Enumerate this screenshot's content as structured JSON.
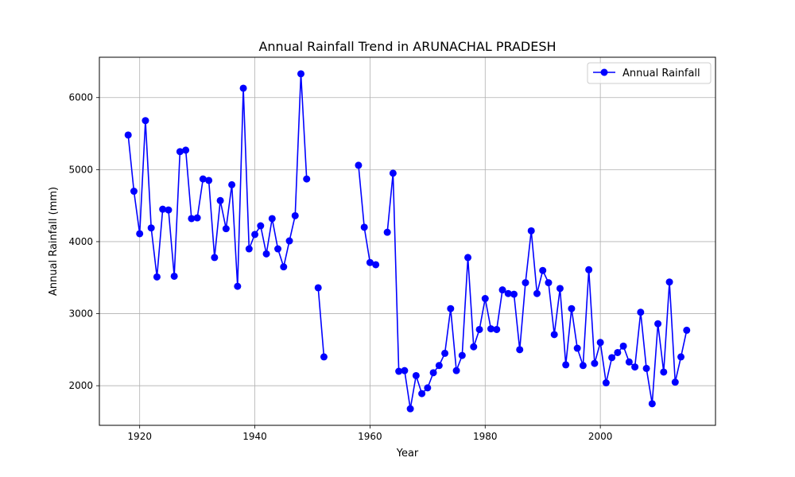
{
  "chart_data": {
    "type": "line",
    "title": "Annual Rainfall Trend in ARUNACHAL PRADESH",
    "xlabel": "Year",
    "ylabel": "Annual Rainfall (mm)",
    "xlim": [
      1913,
      2020
    ],
    "ylim": [
      1450,
      6560
    ],
    "xticks": [
      1920,
      1940,
      1960,
      1980,
      2000
    ],
    "yticks": [
      2000,
      3000,
      4000,
      5000,
      6000
    ],
    "grid": true,
    "legend_position": "top-right",
    "series": [
      {
        "name": "Annual Rainfall",
        "color": "#0000ff",
        "marker": "circle",
        "points": [
          [
            1918,
            5480
          ],
          [
            1919,
            4700
          ],
          [
            1920,
            4110
          ],
          [
            1921,
            5680
          ],
          [
            1922,
            4190
          ],
          [
            1923,
            3510
          ],
          [
            1924,
            4450
          ],
          [
            1925,
            4440
          ],
          [
            1926,
            3520
          ],
          [
            1927,
            5250
          ],
          [
            1928,
            5270
          ],
          [
            1929,
            4320
          ],
          [
            1930,
            4330
          ],
          [
            1931,
            4870
          ],
          [
            1932,
            4850
          ],
          [
            1933,
            3780
          ],
          [
            1934,
            4570
          ],
          [
            1935,
            4180
          ],
          [
            1936,
            4790
          ],
          [
            1937,
            3380
          ],
          [
            1938,
            6130
          ],
          [
            1939,
            3900
          ],
          [
            1940,
            4100
          ],
          [
            1941,
            4220
          ],
          [
            1942,
            3830
          ],
          [
            1943,
            4320
          ],
          [
            1944,
            3900
          ],
          [
            1945,
            3650
          ],
          [
            1946,
            4010
          ],
          [
            1947,
            4360
          ],
          [
            1948,
            6330
          ],
          [
            1949,
            4870
          ],
          [
            1950,
            null
          ],
          [
            1951,
            3360
          ],
          [
            1952,
            2400
          ],
          [
            1953,
            null
          ],
          [
            1954,
            null
          ],
          [
            1955,
            null
          ],
          [
            1956,
            null
          ],
          [
            1957,
            null
          ],
          [
            1958,
            5060
          ],
          [
            1959,
            4200
          ],
          [
            1960,
            3710
          ],
          [
            1961,
            3680
          ],
          [
            1962,
            null
          ],
          [
            1963,
            4130
          ],
          [
            1964,
            4950
          ],
          [
            1965,
            2200
          ],
          [
            1966,
            2210
          ],
          [
            1967,
            1680
          ],
          [
            1968,
            2140
          ],
          [
            1969,
            1890
          ],
          [
            1970,
            1970
          ],
          [
            1971,
            2180
          ],
          [
            1972,
            2280
          ],
          [
            1973,
            2450
          ],
          [
            1974,
            3070
          ],
          [
            1975,
            2210
          ],
          [
            1976,
            2420
          ],
          [
            1977,
            3780
          ],
          [
            1978,
            2540
          ],
          [
            1979,
            2780
          ],
          [
            1980,
            3210
          ],
          [
            1981,
            2790
          ],
          [
            1982,
            2780
          ],
          [
            1983,
            3330
          ],
          [
            1984,
            3280
          ],
          [
            1985,
            3270
          ],
          [
            1986,
            2500
          ],
          [
            1987,
            3430
          ],
          [
            1988,
            4150
          ],
          [
            1989,
            3280
          ],
          [
            1990,
            3600
          ],
          [
            1991,
            3430
          ],
          [
            1992,
            2710
          ],
          [
            1993,
            3350
          ],
          [
            1994,
            2290
          ],
          [
            1995,
            3070
          ],
          [
            1996,
            2520
          ],
          [
            1997,
            2280
          ],
          [
            1998,
            3610
          ],
          [
            1999,
            2310
          ],
          [
            2000,
            2600
          ],
          [
            2001,
            2040
          ],
          [
            2002,
            2390
          ],
          [
            2003,
            2460
          ],
          [
            2004,
            2550
          ],
          [
            2005,
            2330
          ],
          [
            2006,
            2260
          ],
          [
            2007,
            3020
          ],
          [
            2008,
            2240
          ],
          [
            2009,
            1750
          ],
          [
            2010,
            2860
          ],
          [
            2011,
            2190
          ],
          [
            2012,
            3440
          ],
          [
            2013,
            2050
          ],
          [
            2014,
            2400
          ],
          [
            2015,
            2770
          ]
        ]
      }
    ]
  }
}
